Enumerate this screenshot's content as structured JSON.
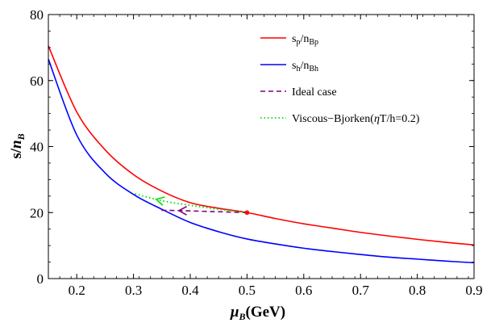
{
  "chart_data": {
    "type": "line",
    "xlabel": {
      "main": "μ",
      "sub": "B",
      "tail": "(GeV)"
    },
    "ylabel": {
      "main": "s/",
      "italic": "n",
      "sub": "B"
    },
    "xlim": [
      0.15,
      0.9
    ],
    "ylim": [
      0,
      80
    ],
    "xticks": [
      0.2,
      0.3,
      0.4,
      0.5,
      0.6,
      0.7,
      0.8,
      0.9
    ],
    "xtick_labels": [
      "0.2",
      "0.3",
      "0.4",
      "0.5",
      "0.6",
      "0.7",
      "0.8",
      "0.9"
    ],
    "yticks": [
      0,
      20,
      40,
      60,
      80
    ],
    "ytick_labels": [
      "0",
      "20",
      "40",
      "60",
      "80"
    ],
    "grid": false,
    "legend_position": "top-right",
    "series": [
      {
        "name": "sp/nBp",
        "legend": {
          "main": "s",
          "sub1": "p",
          "mid": "/n",
          "sub2": "Bp"
        },
        "color": "#ff0000",
        "style": "solid",
        "x": [
          0.15,
          0.2,
          0.25,
          0.3,
          0.35,
          0.4,
          0.45,
          0.5,
          0.55,
          0.6,
          0.65,
          0.7,
          0.75,
          0.8,
          0.85,
          0.9
        ],
        "y": [
          70.5,
          50.5,
          39.0,
          31.5,
          26.5,
          23.0,
          21.3,
          20.0,
          18.2,
          16.6,
          15.3,
          14.0,
          12.9,
          11.9,
          11.0,
          10.2
        ]
      },
      {
        "name": "sh/nBh",
        "legend": {
          "main": "s",
          "sub1": "h",
          "mid": "/n",
          "sub2": "Bh"
        },
        "color": "#0000ff",
        "style": "solid",
        "x": [
          0.15,
          0.2,
          0.25,
          0.3,
          0.35,
          0.4,
          0.45,
          0.5,
          0.55,
          0.6,
          0.65,
          0.7,
          0.75,
          0.8,
          0.85,
          0.9
        ],
        "y": [
          66.5,
          43.5,
          32.0,
          25.5,
          21.0,
          17.0,
          14.2,
          12.0,
          10.5,
          9.2,
          8.2,
          7.3,
          6.5,
          5.9,
          5.3,
          4.8
        ]
      },
      {
        "name": "Ideal case",
        "legend": {
          "main": "Ideal case"
        },
        "color": "#800080",
        "style": "dashed",
        "x": [
          0.5,
          0.44,
          0.38,
          0.346
        ],
        "y": [
          20.0,
          20.3,
          20.6,
          20.7
        ],
        "arrows_at_x": [
          0.38
        ]
      },
      {
        "name": "Viscous-Bjorken(ηT/h=0.2)",
        "legend": {
          "main": "Viscous−Bjorken(",
          "greek": "η",
          "tail": "T/h=0.2)"
        },
        "color": "#00dd00",
        "style": "dotted",
        "x": [
          0.5,
          0.45,
          0.4,
          0.35,
          0.3
        ],
        "y": [
          20.0,
          21.0,
          22.2,
          23.6,
          25.8
        ],
        "arrows_at_x": [
          0.34
        ]
      }
    ],
    "marker": {
      "x": 0.5,
      "y": 20.0,
      "color": "#ff0000"
    }
  }
}
